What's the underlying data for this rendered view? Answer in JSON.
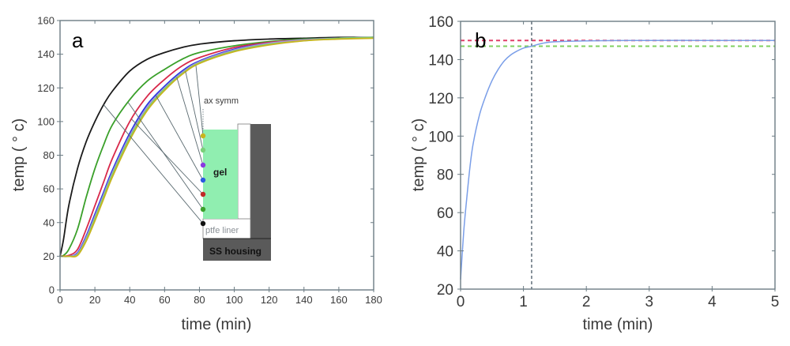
{
  "chart_data": [
    {
      "id": "a",
      "type": "line",
      "panel_label": "a",
      "xlabel": "time (min)",
      "ylabel": "temp ( ° c)",
      "xlim": [
        0,
        180
      ],
      "ylim": [
        0,
        160
      ],
      "xticks": [
        0,
        20,
        40,
        60,
        80,
        100,
        120,
        140,
        160,
        180
      ],
      "yticks": [
        0,
        20,
        40,
        60,
        80,
        100,
        120,
        140,
        160
      ],
      "grid": false,
      "series": [
        {
          "name": "black (bottom)",
          "color": "#1a1a1a",
          "x": [
            0,
            2,
            5,
            10,
            15,
            20,
            25,
            30,
            40,
            50,
            60,
            70,
            80,
            100,
            120,
            140,
            160,
            180
          ],
          "y": [
            20,
            30,
            50,
            72,
            88,
            100,
            110,
            118,
            130,
            137,
            141,
            144,
            146,
            148,
            149,
            149.5,
            150,
            150
          ]
        },
        {
          "name": "green",
          "color": "#3aa02a",
          "x": [
            0,
            2,
            5,
            10,
            15,
            20,
            25,
            30,
            40,
            50,
            60,
            70,
            80,
            100,
            120,
            140,
            160,
            180
          ],
          "y": [
            20,
            20.5,
            24,
            36,
            55,
            72,
            86,
            98,
            113,
            124,
            131,
            137,
            141,
            145,
            147.5,
            149,
            149.5,
            150
          ]
        },
        {
          "name": "red",
          "color": "#d8284a",
          "x": [
            0,
            5,
            10,
            15,
            20,
            25,
            30,
            40,
            50,
            60,
            70,
            80,
            100,
            120,
            140,
            160,
            180
          ],
          "y": [
            20,
            20.5,
            24,
            36,
            50,
            64,
            78,
            100,
            115,
            125,
            133,
            138,
            144,
            147,
            148.5,
            149.5,
            150
          ]
        },
        {
          "name": "blue",
          "color": "#2a3ae0",
          "x": [
            0,
            5,
            10,
            15,
            20,
            25,
            30,
            40,
            50,
            60,
            70,
            80,
            100,
            120,
            140,
            160,
            180
          ],
          "y": [
            20,
            20,
            22,
            32,
            45,
            58,
            71,
            93,
            110,
            121,
            130,
            136,
            143,
            146.5,
            148.5,
            149.5,
            150
          ]
        },
        {
          "name": "purple",
          "color": "#b48ce0",
          "x": [
            0,
            5,
            10,
            15,
            20,
            25,
            30,
            40,
            50,
            60,
            70,
            80,
            100,
            120,
            140,
            160,
            180
          ],
          "y": [
            20,
            20,
            21.5,
            31,
            43.5,
            56.5,
            69.5,
            91.5,
            108.5,
            120,
            129,
            135.5,
            142.5,
            146.5,
            148.5,
            149.5,
            150
          ]
        },
        {
          "name": "light green",
          "color": "#7ad07a",
          "x": [
            0,
            5,
            10,
            15,
            20,
            25,
            30,
            40,
            50,
            60,
            70,
            80,
            100,
            120,
            140,
            160,
            180
          ],
          "y": [
            20,
            20,
            21,
            30,
            42.5,
            55.5,
            68.5,
            90.5,
            107.5,
            119.5,
            128.5,
            135,
            142,
            146,
            148,
            149.5,
            150
          ]
        },
        {
          "name": "yellow (top)",
          "color": "#c8b41e",
          "x": [
            0,
            5,
            10,
            15,
            20,
            25,
            30,
            40,
            50,
            60,
            70,
            80,
            100,
            120,
            140,
            160,
            180
          ],
          "y": [
            20,
            20,
            20.5,
            29,
            41,
            54,
            67,
            89,
            106.5,
            118.5,
            128,
            134.5,
            141.5,
            145.5,
            148,
            149,
            149.5
          ]
        }
      ],
      "inset": {
        "labels": {
          "axis": "ax symm",
          "gel": "gel",
          "liner": "ptfe liner",
          "housing": "SS housing"
        },
        "colors": {
          "gel": "#90eeb0",
          "liner": "#ffffff",
          "housing": "#5a5a5a",
          "connector": "#5a6a70"
        },
        "sensors": [
          {
            "color": "#c8b41e",
            "curve": 6,
            "t": 78
          },
          {
            "color": "#7ad07a",
            "curve": 5,
            "t": 72
          },
          {
            "color": "#8a3ae0",
            "curve": 4,
            "t": 67
          },
          {
            "color": "#2a5ae0",
            "curve": 3,
            "t": 55
          },
          {
            "color": "#c02828",
            "curve": 2,
            "t": 41
          },
          {
            "color": "#3aa02a",
            "curve": 1,
            "t": 39
          },
          {
            "color": "#111111",
            "curve": 0,
            "t": 25
          }
        ]
      }
    },
    {
      "id": "b",
      "type": "line",
      "panel_label": "b",
      "xlabel": "time (min)",
      "ylabel": "temp ( ° c)",
      "xlim": [
        0,
        5
      ],
      "ylim": [
        20,
        160
      ],
      "xticks": [
        0,
        1,
        2,
        3,
        4,
        5
      ],
      "yticks": [
        20,
        40,
        60,
        80,
        100,
        120,
        140,
        160
      ],
      "grid": false,
      "series": [
        {
          "name": "temperature",
          "color": "#7a9ee8",
          "x": [
            0,
            0.05,
            0.1,
            0.15,
            0.2,
            0.3,
            0.4,
            0.5,
            0.6,
            0.7,
            0.8,
            0.9,
            1.0,
            1.13,
            1.3,
            1.5,
            2.0,
            3.0,
            4.0,
            5.0
          ],
          "y": [
            25,
            50,
            68,
            84,
            96,
            111,
            121,
            129,
            135,
            139.5,
            142.5,
            144.5,
            146,
            147,
            148.5,
            149.3,
            149.8,
            150,
            150,
            150
          ]
        }
      ],
      "reference_lines": [
        {
          "orientation": "horizontal",
          "value": 150,
          "color": "#e0406a",
          "style": "dashed"
        },
        {
          "orientation": "horizontal",
          "value": 147,
          "color": "#80d060",
          "style": "dashed"
        },
        {
          "orientation": "vertical",
          "value": 1.13,
          "color": "#4a5a66",
          "style": "dashed"
        }
      ]
    }
  ]
}
